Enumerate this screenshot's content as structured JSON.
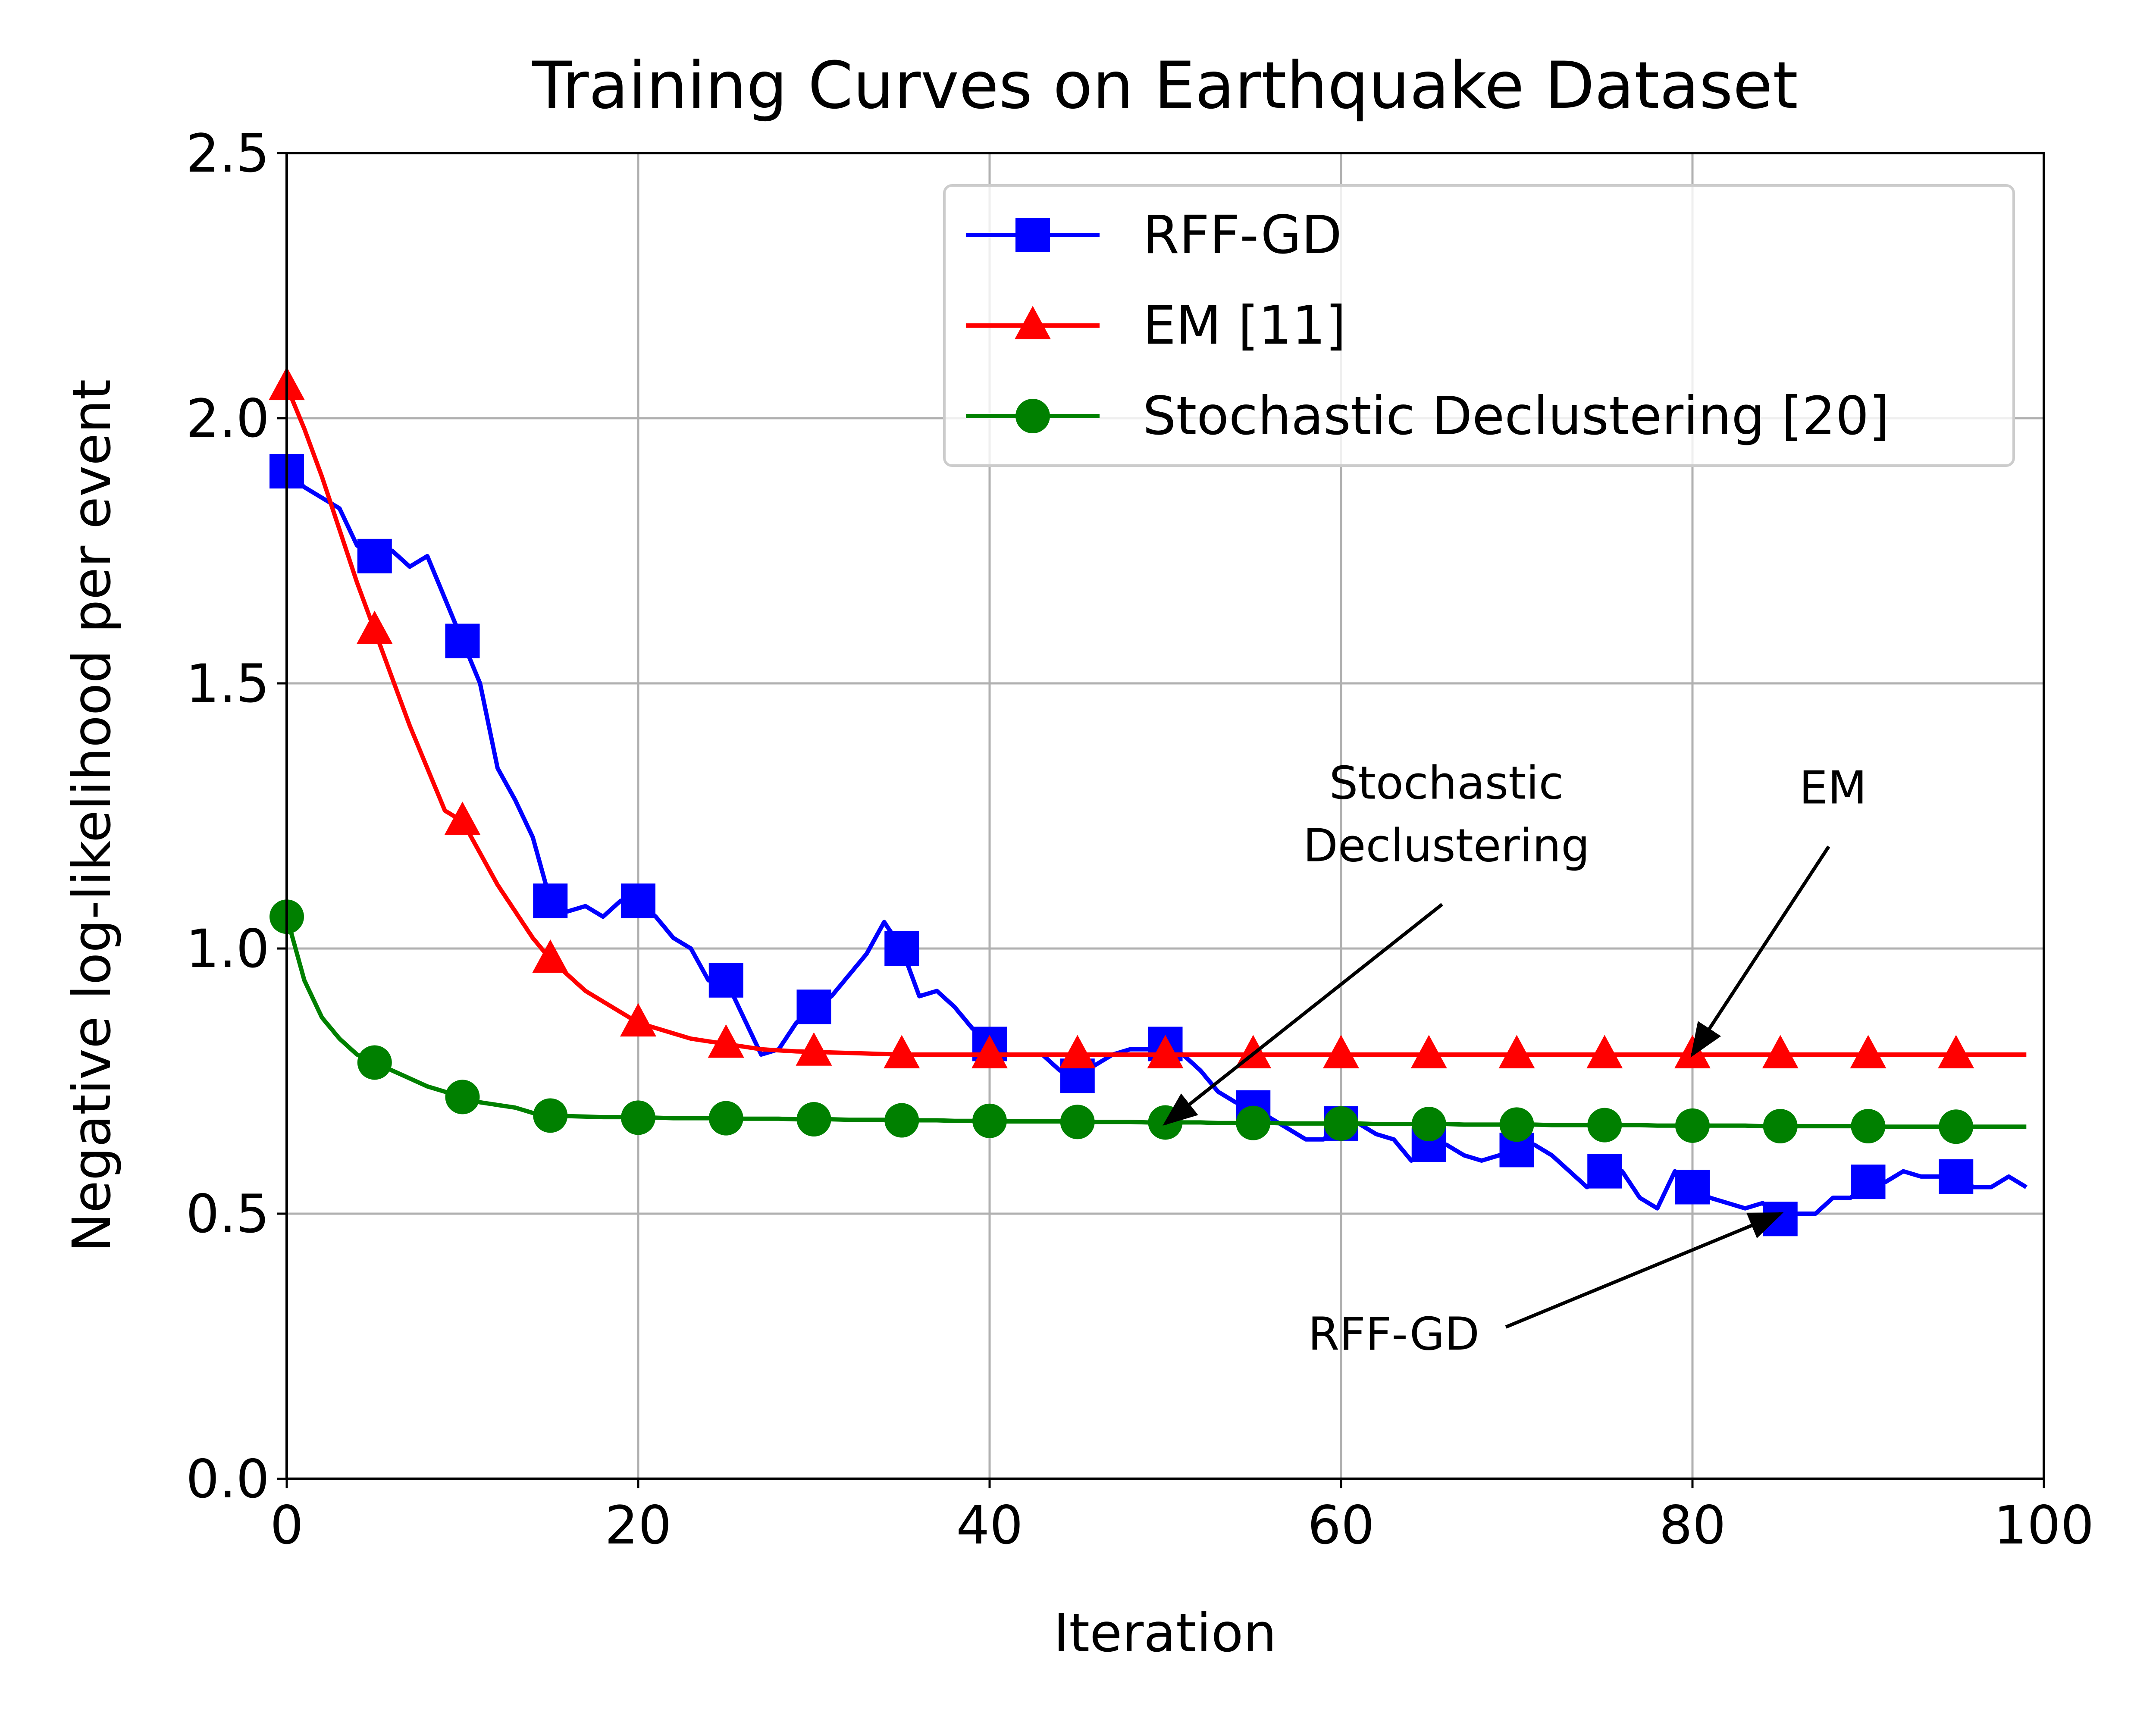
{
  "chart_data": {
    "type": "line",
    "title": "Training Curves on Earthquake Dataset",
    "xlabel": "Iteration",
    "ylabel": "Negative log-likelihood per event",
    "xlim": [
      0,
      100
    ],
    "ylim": [
      0,
      2.5
    ],
    "xticks": [
      0,
      20,
      40,
      60,
      80,
      100
    ],
    "yticks": [
      0.0,
      0.5,
      1.0,
      1.5,
      2.0,
      2.5
    ],
    "xtick_labels": [
      "0",
      "20",
      "40",
      "60",
      "80",
      "100"
    ],
    "ytick_labels": [
      "0.0",
      "0.5",
      "1.0",
      "1.5",
      "2.0",
      "2.5"
    ],
    "grid": true,
    "legend_position": "top-right",
    "series": [
      {
        "name": "RFF-GD",
        "color": "#0000ff",
        "marker": "square",
        "markevery": 5,
        "x": [
          0,
          1,
          2,
          3,
          4,
          5,
          6,
          7,
          8,
          9,
          10,
          11,
          12,
          13,
          14,
          15,
          16,
          17,
          18,
          19,
          20,
          21,
          22,
          23,
          24,
          25,
          26,
          27,
          28,
          29,
          30,
          31,
          32,
          33,
          34,
          35,
          36,
          37,
          38,
          39,
          40,
          41,
          42,
          43,
          44,
          45,
          46,
          47,
          48,
          49,
          50,
          51,
          52,
          53,
          54,
          55,
          56,
          57,
          58,
          59,
          60,
          61,
          62,
          63,
          64,
          65,
          66,
          67,
          68,
          69,
          70,
          71,
          72,
          73,
          74,
          75,
          76,
          77,
          78,
          79,
          80,
          81,
          82,
          83,
          84,
          85,
          86,
          87,
          88,
          89,
          90,
          91,
          92,
          93,
          94,
          95,
          96,
          97,
          98,
          99
        ],
        "values": [
          1.9,
          1.87,
          1.85,
          1.83,
          1.76,
          1.74,
          1.75,
          1.72,
          1.74,
          1.66,
          1.58,
          1.5,
          1.34,
          1.28,
          1.21,
          1.09,
          1.07,
          1.08,
          1.06,
          1.09,
          1.09,
          1.06,
          1.02,
          1.0,
          0.94,
          0.94,
          0.87,
          0.8,
          0.81,
          0.86,
          0.89,
          0.91,
          0.95,
          0.99,
          1.05,
          1.0,
          0.91,
          0.92,
          0.89,
          0.85,
          0.82,
          0.8,
          0.8,
          0.8,
          0.77,
          0.76,
          0.78,
          0.8,
          0.81,
          0.81,
          0.82,
          0.8,
          0.77,
          0.73,
          0.71,
          0.7,
          0.68,
          0.66,
          0.64,
          0.64,
          0.67,
          0.67,
          0.65,
          0.64,
          0.6,
          0.63,
          0.63,
          0.61,
          0.6,
          0.61,
          0.62,
          0.63,
          0.61,
          0.58,
          0.55,
          0.58,
          0.58,
          0.53,
          0.51,
          0.58,
          0.55,
          0.53,
          0.52,
          0.51,
          0.52,
          0.49,
          0.5,
          0.5,
          0.53,
          0.53,
          0.56,
          0.56,
          0.58,
          0.57,
          0.57,
          0.57,
          0.55,
          0.55,
          0.57,
          0.55
        ]
      },
      {
        "name": "EM [11]",
        "color": "#ff0000",
        "marker": "triangle",
        "markevery": 5,
        "x": [
          0,
          1,
          2,
          3,
          4,
          5,
          6,
          7,
          8,
          9,
          10,
          11,
          12,
          13,
          14,
          15,
          16,
          17,
          18,
          19,
          20,
          21,
          22,
          23,
          24,
          25,
          26,
          27,
          28,
          29,
          30,
          31,
          32,
          33,
          34,
          35,
          36,
          37,
          38,
          39,
          40,
          41,
          42,
          43,
          44,
          45,
          46,
          47,
          48,
          49,
          50,
          51,
          52,
          53,
          54,
          55,
          56,
          57,
          58,
          59,
          60,
          61,
          62,
          63,
          64,
          65,
          66,
          67,
          68,
          69,
          70,
          71,
          72,
          73,
          74,
          75,
          76,
          77,
          78,
          79,
          80,
          81,
          82,
          83,
          84,
          85,
          86,
          87,
          88,
          89,
          90,
          91,
          92,
          93,
          94,
          95,
          96,
          97,
          98,
          99
        ],
        "values": [
          2.06,
          1.98,
          1.89,
          1.79,
          1.69,
          1.6,
          1.51,
          1.42,
          1.34,
          1.26,
          1.24,
          1.18,
          1.12,
          1.07,
          1.02,
          0.98,
          0.95,
          0.92,
          0.9,
          0.88,
          0.86,
          0.85,
          0.84,
          0.83,
          0.825,
          0.82,
          0.815,
          0.81,
          0.808,
          0.806,
          0.805,
          0.804,
          0.803,
          0.802,
          0.801,
          0.8,
          0.8,
          0.8,
          0.8,
          0.8,
          0.8,
          0.8,
          0.8,
          0.8,
          0.8,
          0.8,
          0.8,
          0.8,
          0.8,
          0.8,
          0.8,
          0.8,
          0.8,
          0.8,
          0.8,
          0.8,
          0.8,
          0.8,
          0.8,
          0.8,
          0.8,
          0.8,
          0.8,
          0.8,
          0.8,
          0.8,
          0.8,
          0.8,
          0.8,
          0.8,
          0.8,
          0.8,
          0.8,
          0.8,
          0.8,
          0.8,
          0.8,
          0.8,
          0.8,
          0.8,
          0.8,
          0.8,
          0.8,
          0.8,
          0.8,
          0.8,
          0.8,
          0.8,
          0.8,
          0.8,
          0.8,
          0.8,
          0.8,
          0.8,
          0.8,
          0.8,
          0.8,
          0.8,
          0.8,
          0.8
        ]
      },
      {
        "name": "Stochastic Declustering [20]",
        "color": "#008000",
        "marker": "circle",
        "markevery": 5,
        "x": [
          0,
          1,
          2,
          3,
          4,
          5,
          6,
          7,
          8,
          9,
          10,
          11,
          12,
          13,
          14,
          15,
          16,
          17,
          18,
          19,
          20,
          21,
          22,
          23,
          24,
          25,
          26,
          27,
          28,
          29,
          30,
          31,
          32,
          33,
          34,
          35,
          36,
          37,
          38,
          39,
          40,
          41,
          42,
          43,
          44,
          45,
          46,
          47,
          48,
          49,
          50,
          51,
          52,
          53,
          54,
          55,
          56,
          57,
          58,
          59,
          60,
          61,
          62,
          63,
          64,
          65,
          66,
          67,
          68,
          69,
          70,
          71,
          72,
          73,
          74,
          75,
          76,
          77,
          78,
          79,
          80,
          81,
          82,
          83,
          84,
          85,
          86,
          87,
          88,
          89,
          90,
          91,
          92,
          93,
          94,
          95,
          96,
          97,
          98,
          99
        ],
        "values": [
          1.06,
          0.94,
          0.87,
          0.83,
          0.8,
          0.785,
          0.77,
          0.755,
          0.74,
          0.73,
          0.72,
          0.71,
          0.705,
          0.7,
          0.69,
          0.685,
          0.684,
          0.683,
          0.682,
          0.682,
          0.681,
          0.681,
          0.68,
          0.68,
          0.68,
          0.68,
          0.679,
          0.679,
          0.679,
          0.678,
          0.678,
          0.678,
          0.677,
          0.677,
          0.677,
          0.676,
          0.676,
          0.676,
          0.675,
          0.675,
          0.675,
          0.674,
          0.674,
          0.674,
          0.674,
          0.673,
          0.673,
          0.673,
          0.673,
          0.672,
          0.672,
          0.672,
          0.672,
          0.671,
          0.671,
          0.671,
          0.671,
          0.67,
          0.67,
          0.67,
          0.67,
          0.67,
          0.669,
          0.669,
          0.669,
          0.669,
          0.669,
          0.668,
          0.668,
          0.668,
          0.668,
          0.668,
          0.667,
          0.667,
          0.667,
          0.667,
          0.667,
          0.667,
          0.666,
          0.666,
          0.666,
          0.666,
          0.666,
          0.666,
          0.665,
          0.665,
          0.665,
          0.665,
          0.665,
          0.665,
          0.665,
          0.664,
          0.664,
          0.664,
          0.664,
          0.664,
          0.664,
          0.664,
          0.664,
          0.664
        ]
      }
    ],
    "annotations": [
      {
        "series": "Stochastic Declustering [20]",
        "lines": [
          "Stochastic",
          "Declustering"
        ],
        "point": [
          50,
          0.67
        ],
        "text_at": [
          66,
          1.25
        ]
      },
      {
        "series": "EM [11]",
        "lines": [
          "EM"
        ],
        "point": [
          80,
          0.8
        ],
        "text_at": [
          88,
          1.3
        ]
      },
      {
        "series": "RFF-GD",
        "lines": [
          "RFF-GD"
        ],
        "point": [
          85,
          0.5
        ],
        "text_at": [
          63,
          0.27
        ]
      }
    ]
  }
}
